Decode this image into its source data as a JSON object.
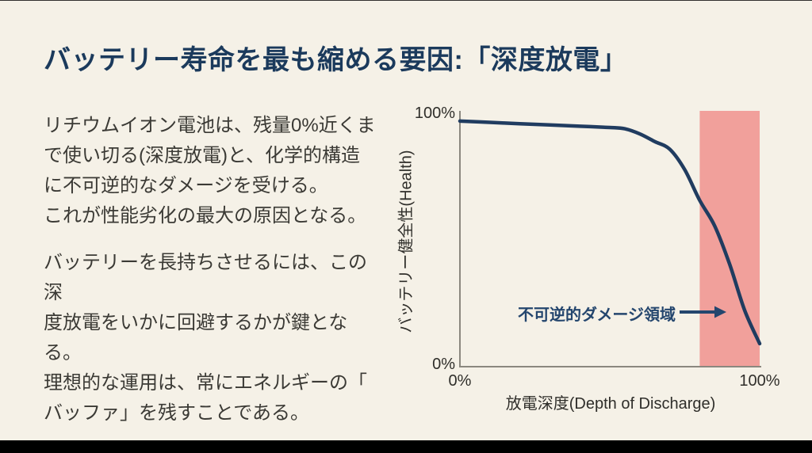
{
  "slide": {
    "title": "バッテリー寿命を最も縮める要因:「深度放電」",
    "paragraphs": [
      "リチウムイオン電池は、残量0%近くま\nで使い切る(深度放電)と、化学的構造\nに不可逆的なダメージを受ける。\nこれが性能劣化の最大の原因となる。",
      "バッテリーを長持ちさせるには、この深\n度放電をいかに回避するかが鍵となる。\n理想的な運用は、常にエネルギーの「\nバッファ」を残すことである。"
    ]
  },
  "chart_data": {
    "type": "line",
    "title": "",
    "xlabel": "放電深度(Depth of Discharge)",
    "ylabel": "バッテリー健全性(Health)",
    "xlim": [
      0,
      100
    ],
    "ylim": [
      0,
      100
    ],
    "x_tick_labels": [
      "0%",
      "100%"
    ],
    "y_tick_labels": [
      "0%",
      "100%"
    ],
    "grid": false,
    "legend": "none",
    "series": [
      {
        "name": "バッテリー健全性 (Health)",
        "x": [
          0,
          10,
          20,
          30,
          40,
          50,
          55,
          60,
          65,
          70,
          75,
          80,
          85,
          90,
          95,
          100
        ],
        "y": [
          96,
          95.5,
          95,
          94.5,
          94,
          93.5,
          93,
          91,
          88,
          85,
          77,
          65,
          55,
          40,
          22,
          9
        ],
        "color": "#203c60"
      }
    ],
    "danger_zone": {
      "x_start": 80,
      "x_end": 100,
      "color": "#f1a09b"
    },
    "annotations": [
      {
        "text": "不可逆的ダメージ領域",
        "arrow": "right-into-danger-zone"
      }
    ]
  },
  "colors": {
    "background": "#f5f1e7",
    "title": "#1b3a5c",
    "body_text": "#3b3a35",
    "curve": "#203c60",
    "danger_zone": "#f1a09b",
    "annotation": "#24466e",
    "axis": "#8b887f",
    "letterbox": "#000000"
  }
}
